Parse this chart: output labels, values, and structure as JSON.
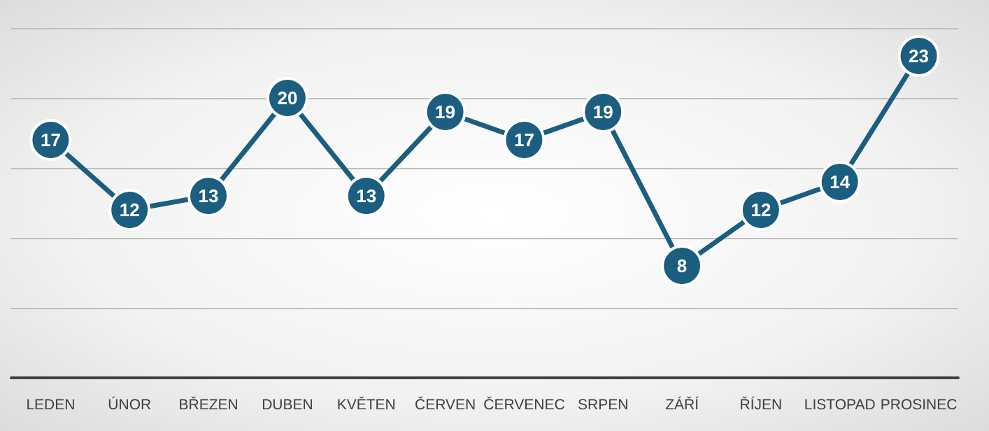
{
  "chart_data": {
    "type": "line",
    "categories": [
      "LEDEN",
      "ÚNOR",
      "BŘEZEN",
      "DUBEN",
      "KVĚTEN",
      "ČERVEN",
      "ČERVENEC",
      "SRPEN",
      "ZÁŘÍ",
      "ŘÍJEN",
      "LISTOPAD",
      "PROSINEC"
    ],
    "series": [
      {
        "color": "#1b5e80",
        "values": [
          17,
          12,
          13,
          20,
          13,
          19,
          17,
          19,
          8,
          12,
          14,
          23
        ]
      }
    ],
    "ylim": [
      0,
      25
    ],
    "yticks": [
      0,
      5,
      10,
      15,
      20,
      25
    ],
    "grid": "y",
    "tick_labels": "x",
    "marker": "circle",
    "line_style": "solid",
    "data_labels": true
  }
}
